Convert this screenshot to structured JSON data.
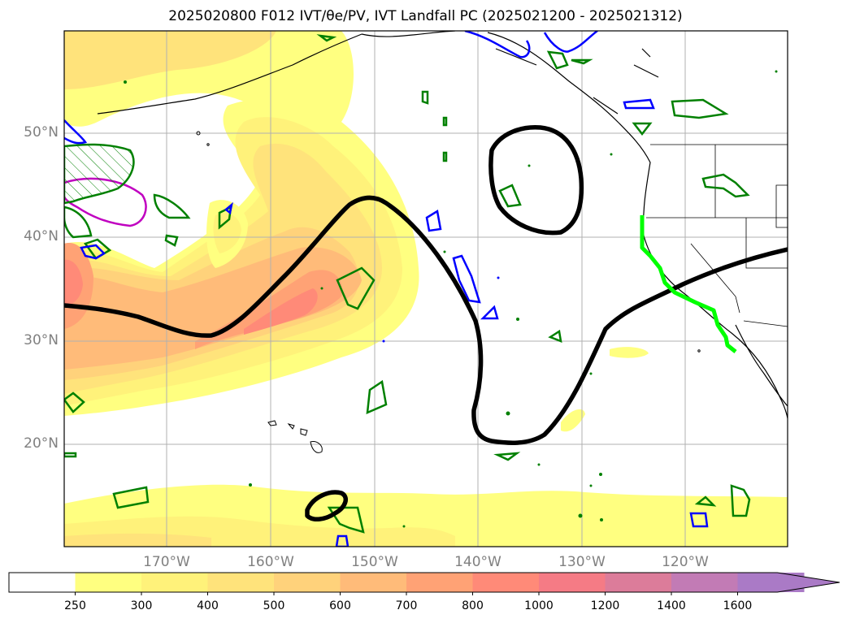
{
  "title": "2025020800 F012 IVT/θe/PV, IVT Landfall PC (2025021200 - 2025021312)",
  "lon_labels": [
    "170°W",
    "160°W",
    "150°W",
    "140°W",
    "130°W",
    "120°W"
  ],
  "lat_labels": [
    "50°N",
    "40°N",
    "30°N",
    "20°N"
  ],
  "colorbar": {
    "ticks": [
      "250",
      "300",
      "400",
      "500",
      "600",
      "700",
      "800",
      "1000",
      "1200",
      "1400",
      "1600"
    ],
    "colors": [
      "#ffff80",
      "#fff27a",
      "#ffe37b",
      "#ffd27b",
      "#ffbb79",
      "#ffa275",
      "#ff8a78",
      "#f57b85",
      "#dc7c9a",
      "#c27bb5",
      "#aa7ac6"
    ],
    "extend": "max"
  },
  "styles": {
    "pc_contour": "#000000",
    "pv_contour": "#008000",
    "theta_contour": "#0000ff",
    "magenta_contour": "#c000c0",
    "landfall_line": "#00ff00",
    "gridline": "#b0b0b0"
  }
}
